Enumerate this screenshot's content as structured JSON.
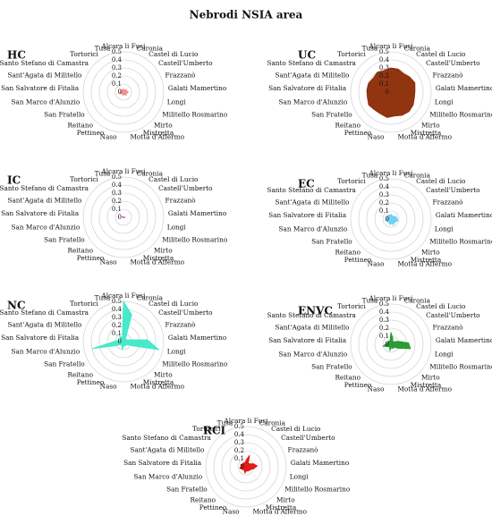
{
  "title": "Nebrodi NSIA area",
  "chart_data": [
    {
      "type": "radar",
      "title": "HC",
      "color": "#f08a8a",
      "categories": [
        "Alcara li Fusi",
        "Caronia",
        "Castel di Lucio",
        "Castell'Umberto",
        "Frazzanò",
        "Galati Mamertino",
        "Longi",
        "Militello Rosmarino",
        "Mirto",
        "Mistretta",
        "Motta d'Affermo",
        "Naso",
        "Pettineo",
        "Reitano",
        "San Fratello",
        "San Marco d'Alunzio",
        "San Salvatore di Fitalia",
        "Sant'Agata di Militello",
        "Santo Stefano di Camastra",
        "Tortorici",
        "Tusa"
      ],
      "values": [
        0.04,
        0.03,
        0.03,
        0.05,
        0.04,
        0.06,
        0.05,
        0.04,
        0.05,
        0.04,
        0.03,
        0.04,
        0.03,
        0.03,
        0.04,
        0.05,
        0.03,
        0.04,
        0.03,
        0.04,
        0.03
      ],
      "rlim": [
        0,
        0.5
      ],
      "rticks": [
        0,
        0.1,
        0.2,
        0.3,
        0.4,
        0.5
      ]
    },
    {
      "type": "radar",
      "title": "UC",
      "color": "#8b2a04",
      "categories": [
        "Alcara li Fusi",
        "Caronia",
        "Castel di Lucio",
        "Castell'Umberto",
        "Frazzanò",
        "Galati Mamertino",
        "Longi",
        "Militello Rosmarino",
        "Mirto",
        "Mistretta",
        "Motta d'Affermo",
        "Naso",
        "Pettineo",
        "Reitano",
        "San Fratello",
        "San Marco d'Alunzio",
        "San Salvatore di Fitalia",
        "Sant'Agata di Militello",
        "Santo Stefano di Camastra",
        "Tortorici",
        "Tusa"
      ],
      "values": [
        0.3,
        0.3,
        0.28,
        0.3,
        0.32,
        0.3,
        0.3,
        0.32,
        0.33,
        0.32,
        0.3,
        0.32,
        0.3,
        0.3,
        0.32,
        0.3,
        0.3,
        0.3,
        0.28,
        0.3,
        0.28
      ],
      "rlim": [
        0,
        0.5
      ],
      "rticks": [
        0,
        0.1,
        0.2,
        0.3,
        0.4,
        0.5
      ]
    },
    {
      "type": "radar",
      "title": "IC",
      "color": "#d070d8",
      "categories": [
        "Alcara li Fusi",
        "Caronia",
        "Castel di Lucio",
        "Castell'Umberto",
        "Frazzanò",
        "Galati Mamertino",
        "Longi",
        "Militello Rosmarino",
        "Mirto",
        "Mistretta",
        "Motta d'Affermo",
        "Naso",
        "Pettineo",
        "Reitano",
        "San Fratello",
        "San Marco d'Alunzio",
        "San Salvatore di Fitalia",
        "Sant'Agata di Militello",
        "Santo Stefano di Camastra",
        "Tortorici",
        "Tusa"
      ],
      "values": [
        0.01,
        0.01,
        0.01,
        0.01,
        0.01,
        0.02,
        0.01,
        0.01,
        0.01,
        0.01,
        0.01,
        0.01,
        0.01,
        0.01,
        0.01,
        0.01,
        0.01,
        0.02,
        0.01,
        0.01,
        0.01
      ],
      "rlim": [
        0,
        0.5
      ],
      "rticks": [
        0,
        0.1,
        0.2,
        0.3,
        0.4,
        0.5
      ]
    },
    {
      "type": "radar",
      "title": "EC",
      "color": "#6ccdf0",
      "categories": [
        "Alcara li Fusi",
        "Caronia",
        "Castel di Lucio",
        "Castell'Umberto",
        "Frazzanò",
        "Galati Mamertino",
        "Longi",
        "Militello Rosmarino",
        "Mirto",
        "Mistretta",
        "Motta d'Affermo",
        "Naso",
        "Pettineo",
        "Reitano",
        "San Fratello",
        "San Marco d'Alunzio",
        "San Salvatore di Fitalia",
        "Sant'Agata di Militello",
        "Santo Stefano di Camastra",
        "Tortorici",
        "Tusa"
      ],
      "values": [
        0.06,
        0.05,
        0.04,
        0.06,
        0.07,
        0.08,
        0.09,
        0.07,
        0.06,
        0.08,
        0.05,
        0.07,
        0.05,
        0.05,
        0.06,
        0.07,
        0.05,
        0.06,
        0.05,
        0.06,
        0.05
      ],
      "rlim": [
        0,
        0.5
      ],
      "rticks": [
        0,
        0.1,
        0.2,
        0.3,
        0.4,
        0.5
      ]
    },
    {
      "type": "radar",
      "title": "NC",
      "color": "#40e8c8",
      "categories": [
        "Alcara li Fusi",
        "Caronia",
        "Castel di Lucio",
        "Castell'Umberto",
        "Frazzanò",
        "Galati Mamertino",
        "Longi",
        "Militello Rosmarino",
        "Mirto",
        "Mistretta",
        "Motta d'Affermo",
        "Naso",
        "Pettineo",
        "Reitano",
        "San Fratello",
        "San Marco d'Alunzio",
        "San Salvatore di Fitalia",
        "Sant'Agata di Militello",
        "Santo Stefano di Camastra",
        "Tortorici",
        "Tusa"
      ],
      "values": [
        0.5,
        0.35,
        0.05,
        0.04,
        0.06,
        0.3,
        0.45,
        0.1,
        0.05,
        0.06,
        0.05,
        0.1,
        0.05,
        0.05,
        0.1,
        0.4,
        0.1,
        0.05,
        0.05,
        0.08,
        0.05
      ],
      "rlim": [
        0,
        0.5
      ],
      "rticks": [
        0,
        0.1,
        0.2,
        0.3,
        0.4,
        0.5
      ]
    },
    {
      "type": "radar",
      "title": "ENVC",
      "color": "#21982a",
      "categories": [
        "Alcara li Fusi",
        "Caronia",
        "Castel di Lucio",
        "Castell'Umberto",
        "Frazzanò",
        "Galati Mamertino",
        "Longi",
        "Militello Rosmarino",
        "Mirto",
        "Mistretta",
        "Motta d'Affermo",
        "Naso",
        "Pettineo",
        "Reitano",
        "San Fratello",
        "San Marco d'Alunzio",
        "San Salvatore di Fitalia",
        "Sant'Agata di Militello",
        "Santo Stefano di Camastra",
        "Tortorici",
        "Tusa"
      ],
      "values": [
        0.15,
        0.08,
        0.04,
        0.05,
        0.1,
        0.22,
        0.25,
        0.1,
        0.05,
        0.06,
        0.04,
        0.08,
        0.04,
        0.04,
        0.06,
        0.1,
        0.06,
        0.05,
        0.04,
        0.05,
        0.04
      ],
      "rlim": [
        0,
        0.5
      ],
      "rticks": [
        0,
        0.1,
        0.2,
        0.3,
        0.4,
        0.5
      ]
    },
    {
      "type": "radar",
      "title": "RCI",
      "color": "#e01010",
      "categories": [
        "Alcara li Fusi",
        "Caronia",
        "Castel di Lucio",
        "Castell'Umberto",
        "Frazzanò",
        "Galati Mamertino",
        "Longi",
        "Militello Rosmarino",
        "Mirto",
        "Mistretta",
        "Motta d'Affermo",
        "Naso",
        "Pettineo",
        "Reitano",
        "San Fratello",
        "San Marco d'Alunzio",
        "San Salvatore di Fitalia",
        "Sant'Agata di Militello",
        "Santo Stefano di Camastra",
        "Tortorici",
        "Tusa"
      ],
      "values": [
        0.08,
        0.15,
        0.05,
        0.06,
        0.1,
        0.14,
        0.1,
        0.07,
        0.06,
        0.06,
        0.05,
        0.08,
        0.05,
        0.05,
        0.06,
        0.08,
        0.06,
        0.07,
        0.05,
        0.06,
        0.05
      ],
      "rlim": [
        0,
        0.5
      ],
      "rticks": [
        0,
        0.1,
        0.2,
        0.3,
        0.4,
        0.5
      ]
    }
  ]
}
